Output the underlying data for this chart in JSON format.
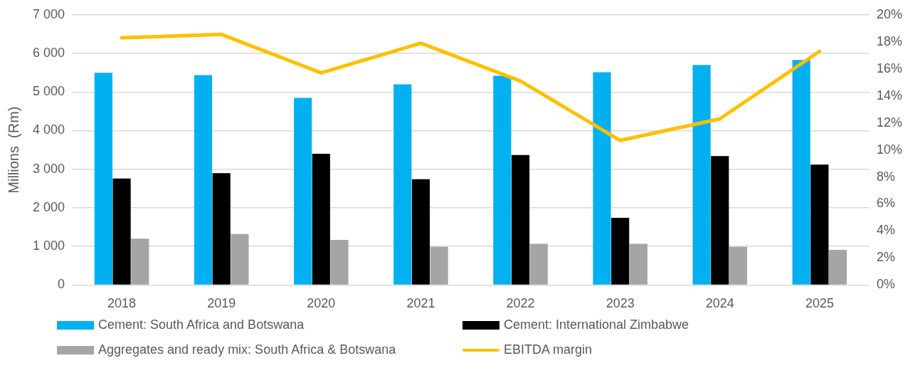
{
  "chart_data": {
    "type": "bar",
    "ylabel": "Millions  (Rm)",
    "categories": [
      "2018",
      "2019",
      "2020",
      "2021",
      "2022",
      "2023",
      "2024",
      "2025"
    ],
    "series": [
      {
        "name": "Cement: South Africa and Botswana",
        "color": "#00b0f0",
        "values": [
          5500,
          5440,
          4850,
          5200,
          5420,
          5510,
          5700,
          5830
        ]
      },
      {
        "name": "Cement: International  Zimbabwe",
        "color": "#000000",
        "values": [
          2760,
          2900,
          3400,
          2740,
          3370,
          1740,
          3340,
          3120
        ]
      },
      {
        "name": "Aggregates and ready mix: South Africa & Botswana",
        "color": "#a5a5a5",
        "values": [
          1200,
          1320,
          1170,
          990,
          1070,
          1070,
          990,
          910
        ]
      },
      {
        "name": "EBITDA margin",
        "type": "line",
        "axis": "y2",
        "color": "#ffc000",
        "marker": "none",
        "values": [
          18.3,
          18.55,
          15.7,
          17.9,
          15.1,
          10.7,
          12.3,
          17.3
        ]
      }
    ],
    "ylim": [
      0,
      7000
    ],
    "yticks": [
      0,
      {
        "value": 1000,
        "label": "1 000"
      },
      {
        "value": 2000,
        "label": "2 000"
      },
      {
        "value": 3000,
        "label": "3 000"
      },
      {
        "value": 4000,
        "label": "4 000"
      },
      {
        "value": 5000,
        "label": "5 000"
      },
      {
        "value": 6000,
        "label": "6 000"
      },
      {
        "value": 7000,
        "label": "7 000"
      }
    ],
    "y2lim": [
      0,
      20
    ],
    "y2ticks": [
      {
        "value": 0,
        "label": "0%"
      },
      {
        "value": 2,
        "label": "2%"
      },
      {
        "value": 4,
        "label": "4%"
      },
      {
        "value": 6,
        "label": "6%"
      },
      {
        "value": 8,
        "label": "8%"
      },
      {
        "value": 10,
        "label": "10%"
      },
      {
        "value": 12,
        "label": "12%"
      },
      {
        "value": 14,
        "label": "14%"
      },
      {
        "value": 16,
        "label": "16%"
      },
      {
        "value": 18,
        "label": "18%"
      },
      {
        "value": 20,
        "label": "20%"
      }
    ],
    "grid": "y",
    "legend": "bottom"
  }
}
